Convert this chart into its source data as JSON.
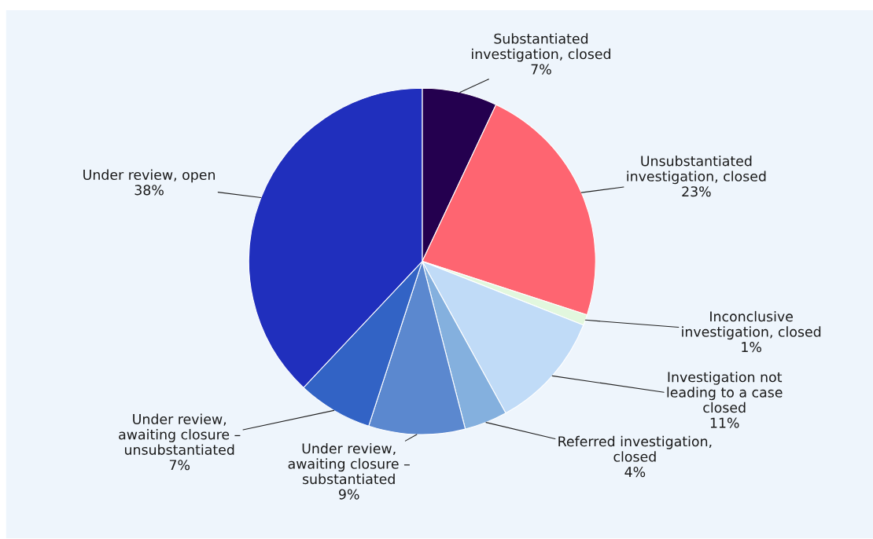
{
  "chart_data": {
    "type": "pie",
    "categories": [
      "Substantiated\ninvestigation, closed",
      "Unsubstantiated\ninvestigation, closed",
      "Inconclusive\ninvestigation, closed",
      "Investigation not\nleading to a case\nclosed",
      "Referred investigation,\nclosed",
      "Under review,\nawaiting closure –\nsubstantiated",
      "Under review,\nawaiting closure –\nunsubstantiated",
      "Under review, open"
    ],
    "values": [
      7,
      23,
      1,
      11,
      4,
      9,
      7,
      38
    ],
    "value_labels": [
      "7%",
      "23%",
      "1%",
      "11%",
      "4%",
      "9%",
      "7%",
      "38%"
    ],
    "colors": [
      "#24004f",
      "#fe6571",
      "#e2f7de",
      "#c0dbf7",
      "#84b0de",
      "#5b88cf",
      "#3263c5",
      "#202fbd"
    ]
  }
}
